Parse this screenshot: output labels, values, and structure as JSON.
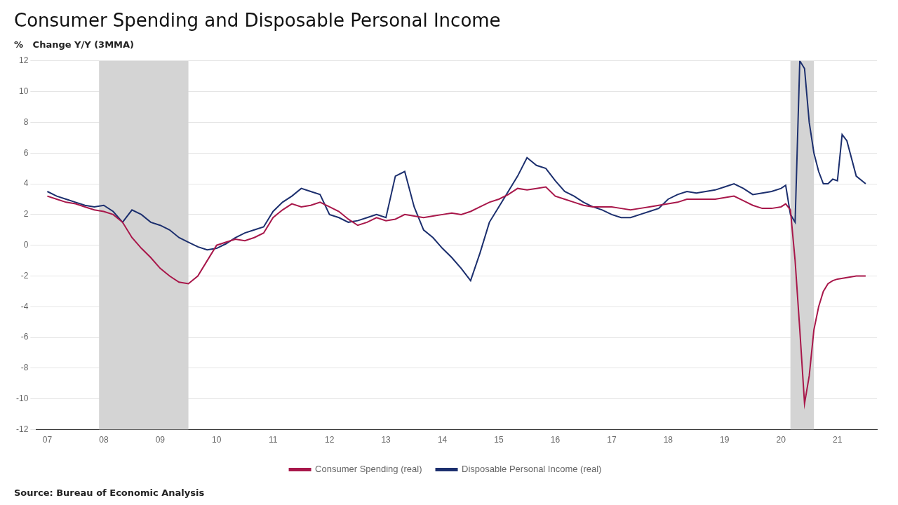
{
  "chart_data": {
    "type": "line",
    "title": "Consumer Spending and Disposable Personal Income",
    "ylabel": "%   Change Y/Y (3MMA)",
    "annotations": [
      "Source: Bureau of Economic Analysis"
    ],
    "xlim": [
      2006.8,
      2021.7
    ],
    "xticks": [
      {
        "value": 2007,
        "label": "07"
      },
      {
        "value": 2008,
        "label": "08"
      },
      {
        "value": 2009,
        "label": "09"
      },
      {
        "value": 2010,
        "label": "10"
      },
      {
        "value": 2011,
        "label": "11"
      },
      {
        "value": 2012,
        "label": "12"
      },
      {
        "value": 2013,
        "label": "13"
      },
      {
        "value": 2014,
        "label": "14"
      },
      {
        "value": 2015,
        "label": "15"
      },
      {
        "value": 2016,
        "label": "16"
      },
      {
        "value": 2017,
        "label": "17"
      },
      {
        "value": 2018,
        "label": "18"
      },
      {
        "value": 2019,
        "label": "19"
      },
      {
        "value": 2020,
        "label": "20"
      },
      {
        "value": 2021,
        "label": "21"
      }
    ],
    "ylim": [
      -12,
      12
    ],
    "yticks": [
      -12,
      -10,
      -8,
      -6,
      -4,
      -2,
      0,
      2,
      4,
      6,
      8,
      10,
      12
    ],
    "grid": "y",
    "legend": "bottom",
    "spans": [
      {
        "x": [
          2007.917,
          2009.5
        ],
        "color": "#d4d4d4"
      },
      {
        "x": [
          2020.167,
          2020.583
        ],
        "color": "#d4d4d4"
      }
    ],
    "series": [
      {
        "name": "Consumer Spending (real)",
        "color": "#a8174a",
        "x": [
          2007.0,
          2007.167,
          2007.333,
          2007.5,
          2007.667,
          2007.833,
          2008.0,
          2008.167,
          2008.333,
          2008.5,
          2008.667,
          2008.833,
          2009.0,
          2009.167,
          2009.333,
          2009.5,
          2009.667,
          2009.833,
          2010.0,
          2010.167,
          2010.333,
          2010.5,
          2010.667,
          2010.833,
          2011.0,
          2011.167,
          2011.333,
          2011.5,
          2011.667,
          2011.833,
          2012.0,
          2012.167,
          2012.333,
          2012.5,
          2012.667,
          2012.833,
          2013.0,
          2013.167,
          2013.333,
          2013.5,
          2013.667,
          2013.833,
          2014.0,
          2014.167,
          2014.333,
          2014.5,
          2014.667,
          2014.833,
          2015.0,
          2015.167,
          2015.333,
          2015.5,
          2015.667,
          2015.833,
          2016.0,
          2016.167,
          2016.333,
          2016.5,
          2016.667,
          2016.833,
          2017.0,
          2017.167,
          2017.333,
          2017.5,
          2017.667,
          2017.833,
          2018.0,
          2018.167,
          2018.333,
          2018.5,
          2018.667,
          2018.833,
          2019.0,
          2019.167,
          2019.333,
          2019.5,
          2019.667,
          2019.833,
          2020.0,
          2020.083,
          2020.167,
          2020.25,
          2020.333,
          2020.417,
          2020.5,
          2020.583,
          2020.667,
          2020.75,
          2020.833,
          2020.917,
          2021.0,
          2021.167,
          2021.333,
          2021.5
        ],
        "values": [
          3.2,
          3.0,
          2.8,
          2.7,
          2.5,
          2.3,
          2.2,
          2.0,
          1.5,
          0.5,
          -0.2,
          -0.8,
          -1.5,
          -2.0,
          -2.4,
          -2.5,
          -2.0,
          -1.0,
          0.0,
          0.2,
          0.4,
          0.3,
          0.5,
          0.8,
          1.8,
          2.3,
          2.7,
          2.5,
          2.6,
          2.8,
          2.5,
          2.2,
          1.7,
          1.3,
          1.5,
          1.8,
          1.6,
          1.7,
          2.0,
          1.9,
          1.8,
          1.9,
          2.0,
          2.1,
          2.0,
          2.2,
          2.5,
          2.8,
          3.0,
          3.3,
          3.7,
          3.6,
          3.7,
          3.8,
          3.2,
          3.0,
          2.8,
          2.6,
          2.5,
          2.5,
          2.5,
          2.4,
          2.3,
          2.4,
          2.5,
          2.6,
          2.7,
          2.8,
          3.0,
          3.0,
          3.0,
          3.0,
          3.1,
          3.2,
          2.9,
          2.6,
          2.4,
          2.4,
          2.5,
          2.7,
          2.3,
          -1.0,
          -5.5,
          -10.3,
          -8.5,
          -5.5,
          -4.0,
          -3.0,
          -2.5,
          -2.3,
          -2.2,
          -2.1,
          -2.0,
          -2.0
        ]
      },
      {
        "name": "Disposable Personal Income (real)",
        "color": "#1c2f6e",
        "x": [
          2007.0,
          2007.167,
          2007.333,
          2007.5,
          2007.667,
          2007.833,
          2008.0,
          2008.167,
          2008.333,
          2008.5,
          2008.667,
          2008.833,
          2009.0,
          2009.167,
          2009.333,
          2009.5,
          2009.667,
          2009.833,
          2010.0,
          2010.167,
          2010.333,
          2010.5,
          2010.667,
          2010.833,
          2011.0,
          2011.167,
          2011.333,
          2011.5,
          2011.667,
          2011.833,
          2012.0,
          2012.167,
          2012.333,
          2012.5,
          2012.667,
          2012.833,
          2013.0,
          2013.167,
          2013.333,
          2013.5,
          2013.667,
          2013.833,
          2014.0,
          2014.167,
          2014.333,
          2014.5,
          2014.667,
          2014.833,
          2015.0,
          2015.167,
          2015.333,
          2015.5,
          2015.667,
          2015.833,
          2016.0,
          2016.167,
          2016.333,
          2016.5,
          2016.667,
          2016.833,
          2017.0,
          2017.167,
          2017.333,
          2017.5,
          2017.667,
          2017.833,
          2018.0,
          2018.167,
          2018.333,
          2018.5,
          2018.667,
          2018.833,
          2019.0,
          2019.167,
          2019.333,
          2019.5,
          2019.667,
          2019.833,
          2020.0,
          2020.083,
          2020.167,
          2020.25,
          2020.333,
          2020.417,
          2020.5,
          2020.583,
          2020.667,
          2020.75,
          2020.833,
          2020.917,
          2021.0,
          2021.083,
          2021.167,
          2021.333,
          2021.5
        ],
        "values": [
          3.5,
          3.2,
          3.0,
          2.8,
          2.6,
          2.5,
          2.6,
          2.2,
          1.5,
          2.3,
          2.0,
          1.5,
          1.3,
          1.0,
          0.5,
          0.2,
          -0.1,
          -0.3,
          -0.2,
          0.1,
          0.5,
          0.8,
          1.0,
          1.2,
          2.2,
          2.8,
          3.2,
          3.7,
          3.5,
          3.3,
          2.0,
          1.8,
          1.5,
          1.6,
          1.8,
          2.0,
          1.8,
          4.5,
          4.8,
          2.5,
          1.0,
          0.5,
          -0.2,
          -0.8,
          -1.5,
          -2.3,
          -0.5,
          1.5,
          2.5,
          3.5,
          4.5,
          5.7,
          5.2,
          5.0,
          4.2,
          3.5,
          3.2,
          2.8,
          2.5,
          2.3,
          2.0,
          1.8,
          1.8,
          2.0,
          2.2,
          2.4,
          3.0,
          3.3,
          3.5,
          3.4,
          3.5,
          3.6,
          3.8,
          4.0,
          3.7,
          3.3,
          3.4,
          3.5,
          3.7,
          3.9,
          2.0,
          1.5,
          12.0,
          11.5,
          8.0,
          6.0,
          4.8,
          4.0,
          4.0,
          4.3,
          4.2,
          7.2,
          6.8,
          4.5,
          4.0
        ]
      }
    ]
  }
}
